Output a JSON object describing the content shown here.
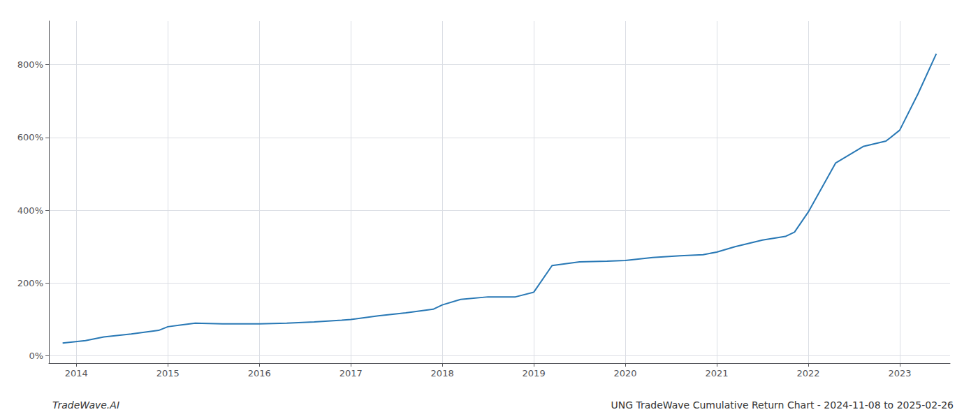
{
  "chart_data": {
    "type": "line",
    "title": "UNG TradeWave Cumulative Return Chart - 2024-11-08 to 2025-02-26",
    "annotations": [
      "TradeWave.AI"
    ],
    "color": "#2878b5",
    "x": [
      2013.85,
      2014.1,
      2014.3,
      2014.6,
      2014.9,
      2015.0,
      2015.3,
      2015.6,
      2015.85,
      2016.0,
      2016.3,
      2016.6,
      2016.9,
      2017.0,
      2017.3,
      2017.6,
      2017.9,
      2018.0,
      2018.2,
      2018.5,
      2018.8,
      2019.0,
      2019.2,
      2019.5,
      2019.8,
      2020.0,
      2020.3,
      2020.6,
      2020.85,
      2021.0,
      2021.2,
      2021.5,
      2021.75,
      2021.85,
      2022.0,
      2022.3,
      2022.6,
      2022.85,
      2023.0,
      2023.2,
      2023.4
    ],
    "values": [
      35,
      42,
      52,
      60,
      70,
      80,
      90,
      88,
      88,
      88,
      90,
      93,
      98,
      100,
      110,
      118,
      128,
      140,
      155,
      162,
      162,
      175,
      248,
      258,
      260,
      262,
      270,
      275,
      278,
      285,
      300,
      318,
      328,
      340,
      395,
      530,
      575,
      590,
      620,
      720,
      830
    ],
    "xlim": [
      2013.7,
      2023.55
    ],
    "xticks": [
      2014,
      2015,
      2016,
      2017,
      2018,
      2019,
      2020,
      2021,
      2022,
      2023
    ],
    "ylim": [
      -20,
      920
    ],
    "yticks": [
      {
        "value": 0,
        "label": "0%"
      },
      {
        "value": 200,
        "label": "200%"
      },
      {
        "value": 400,
        "label": "400%"
      },
      {
        "value": 600,
        "label": "600%"
      },
      {
        "value": 800,
        "label": "800%"
      }
    ],
    "grid": true
  }
}
